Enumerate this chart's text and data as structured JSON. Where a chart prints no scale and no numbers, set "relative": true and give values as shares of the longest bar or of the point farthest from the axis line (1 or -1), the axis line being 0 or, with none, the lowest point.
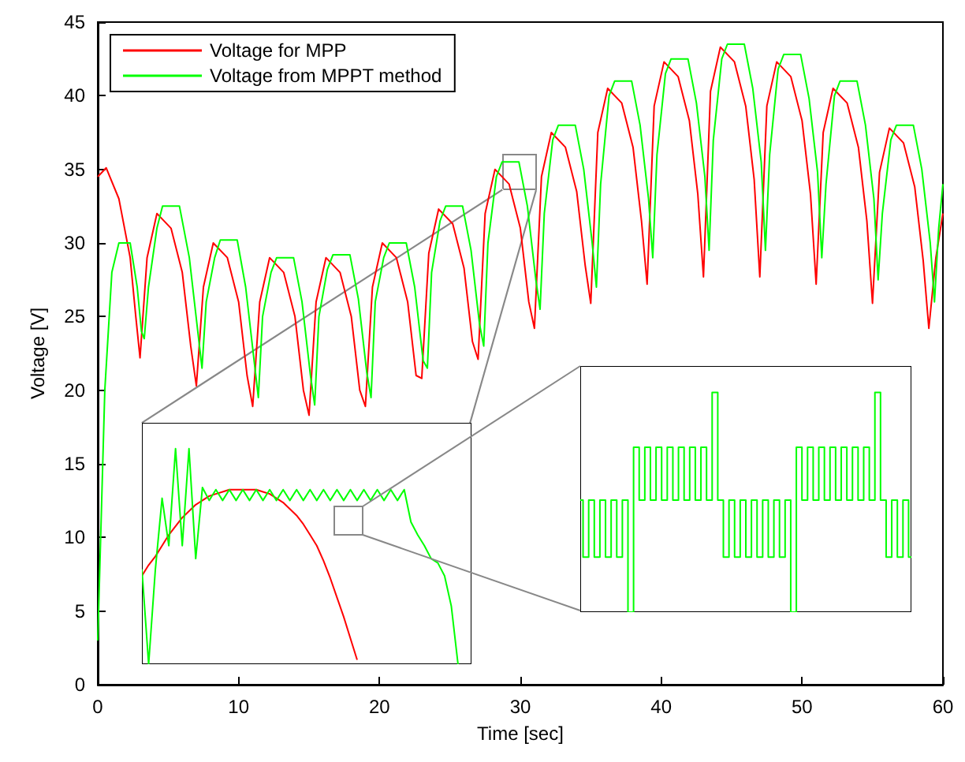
{
  "chart_data": [
    {
      "type": "line",
      "xlabel": "Time [sec]",
      "ylabel": "Voltage [V]",
      "xlim": [
        0,
        60
      ],
      "xticks": [
        0,
        10,
        20,
        30,
        40,
        50,
        60
      ],
      "ylim": [
        0,
        45
      ],
      "yticks": [
        0,
        5,
        10,
        15,
        20,
        25,
        30,
        35,
        40,
        45
      ],
      "grid": false,
      "legend": "top left",
      "marker": "none",
      "line_style": "solid",
      "series": [
        {
          "name": "Voltage for MPP",
          "color": "#ff0000",
          "x": [
            0,
            0.6,
            1.5,
            2.3,
            2.7,
            3,
            3.5,
            4.2,
            5.2,
            6,
            6.6,
            7,
            7.5,
            8.2,
            9.2,
            10,
            10.6,
            11,
            11.5,
            12.2,
            13.2,
            14,
            14.6,
            15,
            15.5,
            16.2,
            17.2,
            18,
            18.6,
            19,
            19.5,
            20.2,
            21.2,
            22,
            22.6,
            23,
            23.5,
            24.2,
            25.2,
            26,
            26.6,
            27,
            27.5,
            28.2,
            29.2,
            30,
            30.6,
            31,
            31.5,
            32.2,
            33.2,
            34,
            34.6,
            35,
            35.5,
            36.2,
            37.2,
            38,
            38.6,
            39,
            39.5,
            40.2,
            41.2,
            42,
            42.6,
            43,
            43.5,
            44.2,
            45.2,
            46,
            46.6,
            47,
            47.5,
            48.2,
            49.2,
            50,
            50.6,
            51,
            51.5,
            52.2,
            53.2,
            54,
            54.6,
            55,
            55.5,
            56.2,
            57.2,
            58,
            58.6,
            59,
            59.5,
            60
          ],
          "values": [
            34.5,
            35.1,
            33,
            29,
            25,
            22.2,
            29,
            32,
            31,
            28,
            23,
            20.3,
            27,
            30,
            29,
            26,
            21,
            18.9,
            26,
            29,
            28,
            25,
            20,
            18.3,
            26,
            29,
            28,
            25,
            20,
            18.9,
            27,
            30,
            29,
            26,
            21,
            20.8,
            29.3,
            32.3,
            31.3,
            28.3,
            23.3,
            22.1,
            32,
            35,
            34,
            31,
            26,
            24.2,
            34.5,
            37.5,
            36.5,
            33.5,
            28.5,
            25.9,
            37.5,
            40.5,
            39.5,
            36.5,
            31.5,
            27.2,
            39.3,
            42.3,
            41.3,
            38.3,
            33.3,
            27.7,
            40.3,
            43.3,
            42.3,
            39.3,
            34.3,
            27.7,
            39.3,
            42.3,
            41.3,
            38.3,
            33.3,
            27.2,
            37.5,
            40.5,
            39.5,
            36.5,
            31.5,
            25.9,
            34.8,
            37.8,
            36.8,
            33.8,
            28.8,
            24.2,
            29,
            32
          ]
        },
        {
          "name": "Voltage from MPPT method",
          "color": "#00ff00",
          "x": [
            0,
            0.5,
            1,
            1.5,
            2.3,
            2.8,
            3.1,
            3.3,
            3.6,
            4.2,
            4.6,
            5.8,
            6.5,
            7.1,
            7.4,
            7.7,
            8.3,
            8.7,
            9.9,
            10.5,
            11.1,
            11.4,
            11.7,
            12.3,
            12.7,
            13.9,
            14.5,
            15.1,
            15.4,
            15.7,
            16.3,
            16.7,
            17.9,
            18.5,
            19.1,
            19.4,
            19.7,
            20.3,
            20.7,
            21.9,
            22.5,
            23.1,
            23.4,
            23.7,
            24.3,
            24.7,
            25.9,
            26.5,
            27.1,
            27.4,
            27.7,
            28.3,
            28.7,
            29.9,
            30.5,
            31.1,
            31.4,
            31.7,
            32.3,
            32.7,
            33.9,
            34.5,
            35.1,
            35.4,
            35.7,
            36.3,
            36.7,
            37.9,
            38.5,
            39.1,
            39.4,
            39.7,
            40.3,
            40.7,
            41.9,
            42.5,
            43.1,
            43.4,
            43.7,
            44.3,
            44.7,
            45.9,
            46.5,
            47.1,
            47.4,
            47.7,
            48.3,
            48.7,
            49.9,
            50.5,
            51.1,
            51.4,
            51.7,
            52.3,
            52.7,
            53.9,
            54.5,
            55.1,
            55.4,
            55.7,
            56.3,
            56.7,
            57.9,
            58.5,
            59.1,
            59.4,
            59.7,
            60
          ],
          "values": [
            3,
            20,
            28,
            30,
            30,
            27,
            24,
            23.5,
            27,
            31,
            32.5,
            32.5,
            29,
            24,
            21.5,
            26,
            29,
            30.2,
            30.2,
            27,
            22,
            19.5,
            25,
            28,
            29,
            29,
            26,
            21,
            19,
            25,
            28.2,
            29.2,
            29.2,
            26.2,
            21.2,
            19.5,
            26,
            29,
            30,
            30,
            27,
            22,
            21.5,
            28,
            31.5,
            32.5,
            32.5,
            29.5,
            24.5,
            23,
            30,
            34.5,
            35.5,
            35.5,
            32.5,
            27.5,
            25.5,
            32,
            37,
            38,
            38,
            35,
            30,
            27,
            34,
            40,
            41,
            41,
            38,
            33,
            29,
            36,
            41.5,
            42.5,
            42.5,
            39.5,
            34.5,
            29.5,
            37,
            42.5,
            43.5,
            43.5,
            40.5,
            35.5,
            29.5,
            36,
            41.8,
            42.8,
            42.8,
            39.8,
            34.8,
            29,
            34,
            40,
            41,
            41,
            38,
            33,
            27.5,
            32,
            37,
            38,
            38,
            35,
            30,
            26,
            31,
            34
          ]
        }
      ]
    },
    {
      "type": "line",
      "relative": true,
      "tick_labels": false,
      "marker": "none",
      "categories": [
        null,
        null,
        null,
        null,
        null,
        null,
        null,
        null,
        null,
        null,
        null,
        null,
        null,
        null,
        null,
        null,
        null,
        null,
        null,
        null,
        null,
        null,
        null,
        null,
        null,
        null,
        null,
        null,
        null,
        null,
        null,
        null,
        null,
        null,
        null,
        null,
        null,
        null,
        null,
        null,
        null,
        null,
        null,
        null,
        null,
        null,
        null,
        null,
        null,
        null
      ],
      "series": [
        {
          "color": "#ff0000",
          "values": [
            0.41,
            0.46,
            0.5,
            0.55,
            0.6,
            0.64,
            0.68,
            0.71,
            0.74,
            0.76,
            0.78,
            0.79,
            0.8,
            0.81,
            0.81,
            0.81,
            0.81,
            0.81,
            0.8,
            0.79,
            0.77,
            0.75,
            0.72,
            0.69,
            0.65,
            0.6,
            0.55,
            0.48,
            0.4,
            0.31,
            0.22,
            0.12,
            0.02,
            null,
            null,
            null,
            null,
            null,
            null,
            null,
            null,
            null,
            null,
            null,
            null,
            null,
            null,
            null,
            null,
            null
          ]
        },
        {
          "color": "#00ff00",
          "values": [
            0.44,
            0,
            0.44,
            0.77,
            0.55,
            1,
            0.55,
            1,
            0.49,
            0.82,
            0.76,
            0.81,
            0.76,
            0.81,
            0.76,
            0.81,
            0.76,
            0.81,
            0.76,
            0.81,
            0.76,
            0.81,
            0.76,
            0.81,
            0.76,
            0.81,
            0.76,
            0.81,
            0.76,
            0.81,
            0.76,
            0.81,
            0.76,
            0.81,
            0.76,
            0.81,
            0.76,
            0.81,
            0.76,
            0.81,
            0.66,
            0.6,
            0.55,
            0.49,
            0.47,
            0.41,
            0.27,
            0,
            null,
            null
          ]
        }
      ]
    },
    {
      "type": "step",
      "relative": true,
      "tick_labels": false,
      "marker": "none",
      "categories": [
        null,
        null,
        null,
        null,
        null,
        null,
        null,
        null,
        null,
        null,
        null,
        null,
        null,
        null,
        null,
        null,
        null,
        null,
        null,
        null,
        null,
        null,
        null,
        null,
        null,
        null,
        null,
        null,
        null,
        null,
        null,
        null,
        null,
        null,
        null,
        null,
        null,
        null,
        null,
        null,
        null,
        null,
        null,
        null,
        null,
        null,
        null,
        null,
        null,
        null,
        null,
        null,
        null,
        null,
        null,
        null,
        null,
        null,
        null,
        null
      ],
      "series": [
        {
          "color": "#00ff00",
          "values": [
            0.51,
            0.25,
            0.51,
            0.25,
            0.51,
            0.25,
            0.51,
            0.25,
            0.51,
            0,
            0.75,
            0.51,
            0.75,
            0.51,
            0.75,
            0.51,
            0.75,
            0.51,
            0.75,
            0.51,
            0.75,
            0.51,
            0.75,
            0.51,
            1,
            0.51,
            0.25,
            0.51,
            0.25,
            0.51,
            0.25,
            0.51,
            0.25,
            0.51,
            0.25,
            0.51,
            0.25,
            0.51,
            0,
            0.75,
            0.51,
            0.75,
            0.51,
            0.75,
            0.51,
            0.75,
            0.51,
            0.75,
            0.51,
            0.75,
            0.51,
            0.75,
            0.51,
            1,
            0.51,
            0.25,
            0.51,
            0.25,
            0.51,
            0.25
          ]
        }
      ]
    }
  ]
}
